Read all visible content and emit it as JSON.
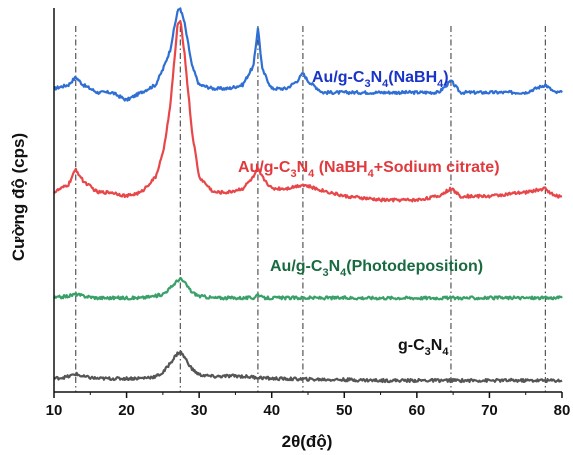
{
  "chart_data": {
    "type": "line",
    "xlabel": "2θ(độ)",
    "ylabel": "Cường độ (cps)",
    "xlim": [
      10,
      80
    ],
    "xticks": [
      10,
      20,
      30,
      40,
      50,
      60,
      70,
      80
    ],
    "y_ticks_shown": false,
    "reference_lines_x": [
      13.0,
      27.4,
      38.1,
      44.3,
      64.7,
      77.7
    ],
    "reference_line_style": "dash-dot",
    "series": [
      {
        "name": "Au/g-C3N4(NaBH4)",
        "label_parts": [
          "Au/g-C",
          "3",
          "N",
          "4",
          "(NaBH",
          "4",
          ")"
        ],
        "color": "#2f6fd4",
        "label_color": "#1a33c8",
        "points": [
          [
            10,
            0.79
          ],
          [
            12,
            0.8
          ],
          [
            13,
            0.82
          ],
          [
            14,
            0.8
          ],
          [
            16,
            0.78
          ],
          [
            18,
            0.78
          ],
          [
            20,
            0.76
          ],
          [
            22,
            0.78
          ],
          [
            24,
            0.8
          ],
          [
            25,
            0.84
          ],
          [
            26,
            0.89
          ],
          [
            27,
            0.99
          ],
          [
            27.4,
            1.0
          ],
          [
            28,
            0.96
          ],
          [
            29,
            0.85
          ],
          [
            30,
            0.8
          ],
          [
            32,
            0.79
          ],
          [
            34,
            0.79
          ],
          [
            36,
            0.8
          ],
          [
            37.5,
            0.85
          ],
          [
            38.1,
            0.95
          ],
          [
            38.7,
            0.84
          ],
          [
            40,
            0.79
          ],
          [
            42,
            0.79
          ],
          [
            43.5,
            0.81
          ],
          [
            44.3,
            0.83
          ],
          [
            45,
            0.81
          ],
          [
            47,
            0.78
          ],
          [
            50,
            0.78
          ],
          [
            55,
            0.78
          ],
          [
            60,
            0.78
          ],
          [
            63,
            0.78
          ],
          [
            64.7,
            0.81
          ],
          [
            66,
            0.78
          ],
          [
            70,
            0.78
          ],
          [
            75,
            0.78
          ],
          [
            77.7,
            0.8
          ],
          [
            79,
            0.78
          ],
          [
            80,
            0.78
          ]
        ]
      },
      {
        "name": "Au/g-C3N4 (NaBH4+Sodium citrate)",
        "label_parts": [
          "Au/g-C",
          "3",
          "N",
          "4",
          " (NaBH",
          "4",
          "+Sodium citrate)"
        ],
        "color": "#e8474a",
        "label_color": "#e03a3e",
        "points": [
          [
            10,
            0.52
          ],
          [
            12,
            0.54
          ],
          [
            13,
            0.58
          ],
          [
            14,
            0.55
          ],
          [
            16,
            0.52
          ],
          [
            18,
            0.52
          ],
          [
            20,
            0.51
          ],
          [
            22,
            0.52
          ],
          [
            24,
            0.56
          ],
          [
            25,
            0.62
          ],
          [
            26,
            0.74
          ],
          [
            27,
            0.95
          ],
          [
            27.4,
            0.97
          ],
          [
            28,
            0.88
          ],
          [
            29,
            0.68
          ],
          [
            30,
            0.56
          ],
          [
            32,
            0.52
          ],
          [
            34,
            0.52
          ],
          [
            36,
            0.53
          ],
          [
            37.5,
            0.56
          ],
          [
            38.1,
            0.58
          ],
          [
            38.7,
            0.56
          ],
          [
            40,
            0.53
          ],
          [
            42,
            0.53
          ],
          [
            44.3,
            0.54
          ],
          [
            46,
            0.53
          ],
          [
            50,
            0.51
          ],
          [
            55,
            0.5
          ],
          [
            60,
            0.5
          ],
          [
            63,
            0.51
          ],
          [
            64.7,
            0.53
          ],
          [
            66,
            0.51
          ],
          [
            70,
            0.51
          ],
          [
            75,
            0.52
          ],
          [
            77.7,
            0.53
          ],
          [
            79,
            0.51
          ],
          [
            80,
            0.51
          ]
        ]
      },
      {
        "name": "Au/g-C3N4(Photodeposition)",
        "label_parts": [
          "Au/g-C",
          "3",
          "N",
          "4",
          "(Photodeposition)"
        ],
        "color": "#3aa06a",
        "label_color": "#1a6a40",
        "points": [
          [
            10,
            0.245
          ],
          [
            12,
            0.25
          ],
          [
            13,
            0.255
          ],
          [
            14,
            0.25
          ],
          [
            16,
            0.245
          ],
          [
            18,
            0.245
          ],
          [
            20,
            0.245
          ],
          [
            22,
            0.245
          ],
          [
            24,
            0.25
          ],
          [
            25,
            0.255
          ],
          [
            26,
            0.27
          ],
          [
            27,
            0.29
          ],
          [
            27.4,
            0.295
          ],
          [
            28,
            0.285
          ],
          [
            29,
            0.26
          ],
          [
            30,
            0.25
          ],
          [
            32,
            0.245
          ],
          [
            35,
            0.245
          ],
          [
            37.5,
            0.245
          ],
          [
            38.1,
            0.255
          ],
          [
            38.7,
            0.245
          ],
          [
            40,
            0.245
          ],
          [
            45,
            0.245
          ],
          [
            50,
            0.245
          ],
          [
            55,
            0.245
          ],
          [
            60,
            0.245
          ],
          [
            65,
            0.245
          ],
          [
            70,
            0.245
          ],
          [
            75,
            0.245
          ],
          [
            80,
            0.245
          ]
        ]
      },
      {
        "name": "g-C3N4",
        "label_parts": [
          "g-C",
          "3",
          "N",
          "4"
        ],
        "color": "#555555",
        "label_color": "#111111",
        "points": [
          [
            10,
            0.035
          ],
          [
            12,
            0.04
          ],
          [
            13,
            0.047
          ],
          [
            14,
            0.04
          ],
          [
            16,
            0.035
          ],
          [
            18,
            0.035
          ],
          [
            20,
            0.035
          ],
          [
            22,
            0.036
          ],
          [
            24,
            0.04
          ],
          [
            25,
            0.05
          ],
          [
            26,
            0.075
          ],
          [
            27,
            0.1
          ],
          [
            27.4,
            0.105
          ],
          [
            28,
            0.09
          ],
          [
            29,
            0.06
          ],
          [
            30,
            0.045
          ],
          [
            32,
            0.04
          ],
          [
            35,
            0.042
          ],
          [
            38,
            0.038
          ],
          [
            40,
            0.035
          ],
          [
            45,
            0.033
          ],
          [
            50,
            0.032
          ],
          [
            55,
            0.03
          ],
          [
            60,
            0.03
          ],
          [
            65,
            0.03
          ],
          [
            70,
            0.03
          ],
          [
            75,
            0.03
          ],
          [
            80,
            0.03
          ]
        ]
      }
    ]
  }
}
